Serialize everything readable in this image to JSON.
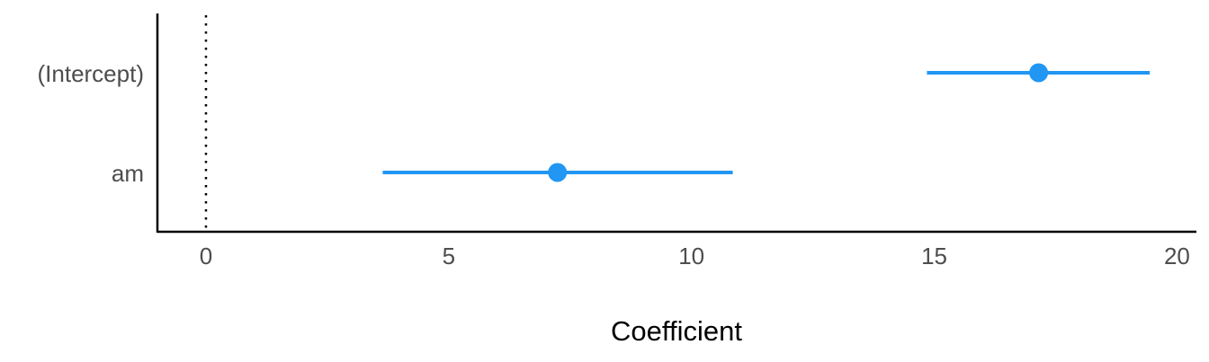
{
  "chart_data": {
    "type": "scatter",
    "subtype": "coefficient-plot",
    "xlabel": "Coefficient",
    "ylabel": "",
    "xlim": [
      -1,
      20.4
    ],
    "x_ticks": [
      0,
      5,
      10,
      15,
      20
    ],
    "x_tick_labels": [
      "0",
      "5",
      "10",
      "15",
      "20"
    ],
    "reference_line": {
      "x": 0,
      "style": "dotted"
    },
    "categories": [
      "(Intercept)",
      "am"
    ],
    "estimates": [
      17.15,
      7.24
    ],
    "conf_low": [
      14.85,
      3.64
    ],
    "conf_high": [
      19.44,
      10.85
    ],
    "grid": false,
    "legend": "none",
    "point_color": "#2196F3"
  }
}
